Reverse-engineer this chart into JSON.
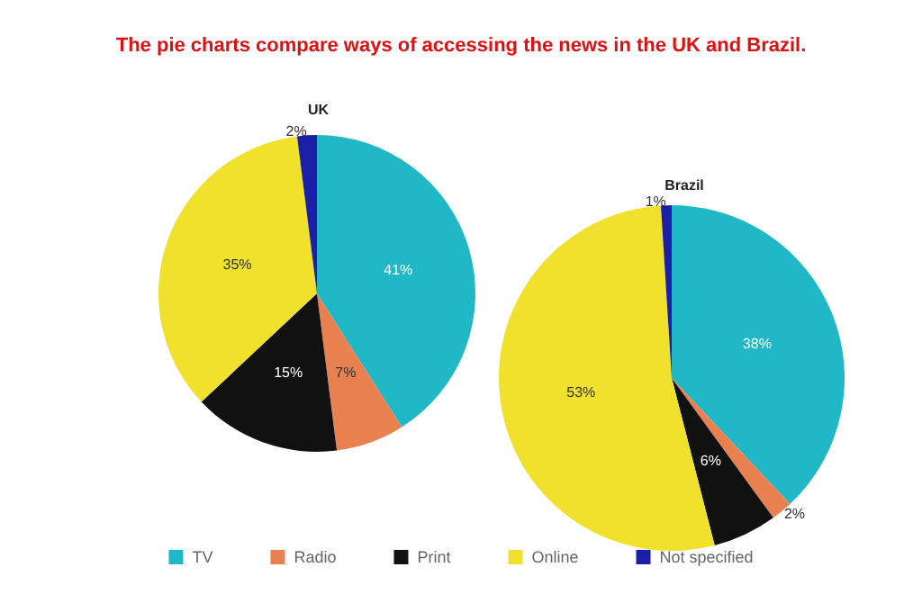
{
  "chart_data": [
    {
      "type": "pie",
      "title": "UK",
      "annotations": [
        "The pie charts compare ways of accessing the news in the UK and Brazil."
      ],
      "categories": [
        "TV",
        "Radio",
        "Print",
        "Online",
        "Not specified"
      ],
      "values": [
        41,
        7,
        15,
        35,
        2
      ],
      "value_labels": [
        "41%",
        "7%",
        "15%",
        "35%",
        "2%"
      ],
      "colors": [
        "#20b8c6",
        "#e8814f",
        "#111111",
        "#f0e22c",
        "#1b1fa8"
      ],
      "legend": "bottom"
    },
    {
      "type": "pie",
      "title": "Brazil",
      "categories": [
        null,
        null,
        null,
        null,
        null
      ],
      "values": [
        38,
        2,
        6,
        53,
        1
      ],
      "value_labels": [
        "38%",
        "2%",
        "6%",
        "53%",
        "1%"
      ],
      "colors": [
        "#20b8c6",
        "#e8814f",
        "#111111",
        "#f0e22c",
        "#1b1fa8"
      ]
    }
  ]
}
